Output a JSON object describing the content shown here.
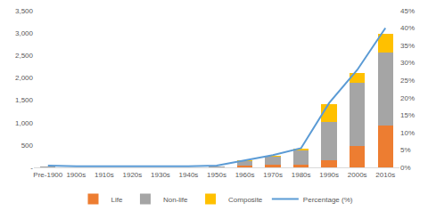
{
  "chart_data": {
    "type": "bar",
    "stacked": true,
    "grid": false,
    "legend": "bottom",
    "categories": [
      "Pre-1900",
      "1900s",
      "1910s",
      "1920s",
      "1930s",
      "1940s",
      "1950s",
      "1960s",
      "1970s",
      "1980s",
      "1990s",
      "2000s",
      "2010s"
    ],
    "series": [
      {
        "name": "Life",
        "color": "#ed7d31",
        "values": [
          5,
          0,
          0,
          0,
          0,
          0,
          5,
          30,
          50,
          60,
          150,
          470,
          940
        ]
      },
      {
        "name": "Non-life",
        "color": "#a5a5a5",
        "values": [
          15,
          5,
          5,
          5,
          5,
          5,
          10,
          110,
          180,
          320,
          870,
          1410,
          1620
        ]
      },
      {
        "name": "Composite",
        "color": "#ffc000",
        "values": [
          5,
          0,
          0,
          0,
          0,
          0,
          5,
          10,
          20,
          40,
          400,
          220,
          420
        ]
      },
      {
        "name": "Percentage (%)",
        "color": "#5b9bd5",
        "type": "line",
        "axis": "y2",
        "values": [
          0.5,
          0.3,
          0.3,
          0.3,
          0.3,
          0.3,
          0.5,
          2,
          3.5,
          5.5,
          18.5,
          28,
          40
        ]
      }
    ],
    "ylim": [
      0,
      3500
    ],
    "yticks": [
      {
        "value": 0,
        "label": "-"
      },
      500,
      {
        "value": 1000,
        "label": "1,000"
      },
      {
        "value": 1500,
        "label": "1,500"
      },
      {
        "value": 2000,
        "label": "2,000"
      },
      {
        "value": 2500,
        "label": "2,500"
      },
      {
        "value": 3000,
        "label": "3,000"
      },
      {
        "value": 3500,
        "label": "3,500"
      }
    ],
    "y2lim": [
      0,
      45
    ],
    "y2ticks": [
      {
        "value": 0,
        "label": "0%"
      },
      {
        "value": 5,
        "label": "5%"
      },
      {
        "value": 10,
        "label": "10%"
      },
      {
        "value": 15,
        "label": "15%"
      },
      {
        "value": 20,
        "label": "20%"
      },
      {
        "value": 25,
        "label": "25%"
      },
      {
        "value": 30,
        "label": "30%"
      },
      {
        "value": 35,
        "label": "35%"
      },
      {
        "value": 40,
        "label": "40%"
      },
      {
        "value": 45,
        "label": "45%"
      }
    ]
  }
}
